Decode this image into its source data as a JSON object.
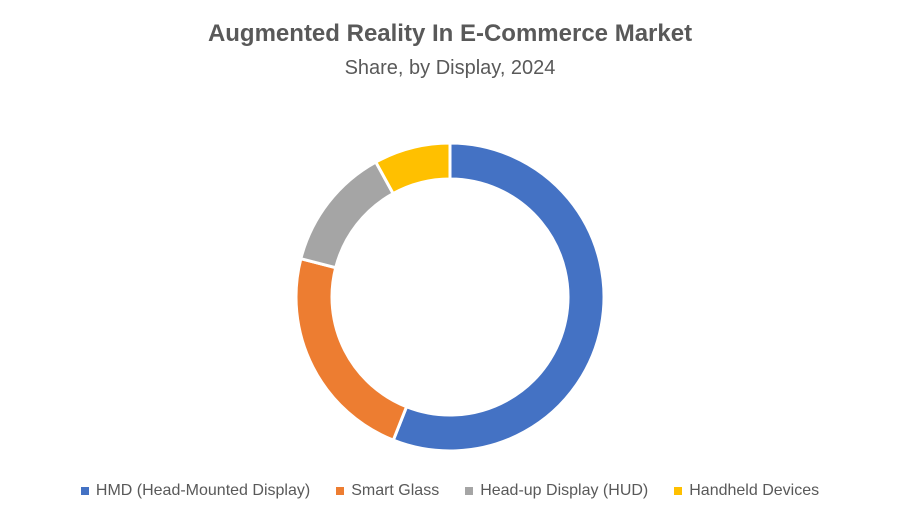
{
  "title": "Augmented Reality In E-Commerce Market",
  "subtitle": "Share, by Display, 2024",
  "chart_data": {
    "type": "pie",
    "donut": true,
    "title": "Augmented Reality In E-Commerce Market",
    "subtitle": "Share, by Display, 2024",
    "categories": [
      "HMD (Head-Mounted Display)",
      "Smart Glass",
      "Head-up Display (HUD)",
      "Handheld Devices"
    ],
    "values": [
      56,
      23,
      13,
      8
    ],
    "unit": "%",
    "colors": [
      "#4472C4",
      "#ED7D31",
      "#A5A5A5",
      "#FFC000"
    ],
    "legend_position": "bottom"
  }
}
